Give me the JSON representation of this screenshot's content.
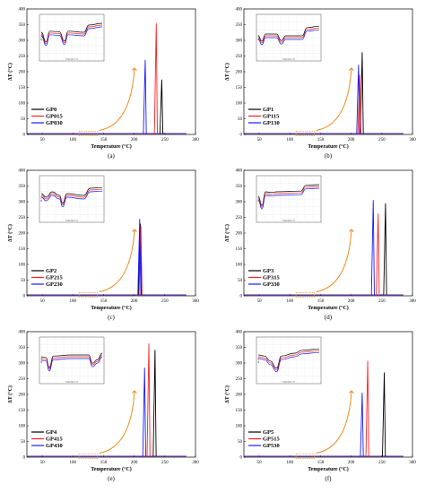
{
  "chart_data": [
    {
      "type": "line",
      "panel_label": "(a)",
      "xlabel": "Temperature (°C)",
      "ylabel": "ΔT (°C)",
      "xlim": [
        25,
        300
      ],
      "ylim": [
        0,
        400
      ],
      "xticks": [
        "50",
        "100",
        "150",
        "200",
        "250",
        "300"
      ],
      "yticks": [
        "0",
        "50",
        "100",
        "150",
        "200",
        "250",
        "300",
        "350",
        "400"
      ],
      "legend": "bottom-left",
      "series": [
        {
          "name": "GP0",
          "color": "#000000",
          "peak_x": 245,
          "peak_y": 175
        },
        {
          "name": "GP015",
          "color": "#ff2020",
          "peak_x": 236,
          "peak_y": 355
        },
        {
          "name": "GP030",
          "color": "#1a1aff",
          "peak_x": 218,
          "peak_y": 238
        }
      ],
      "inset": {
        "xlabel": "Temperature (°C)",
        "ylabel": "ΔT (°C)"
      }
    },
    {
      "type": "line",
      "panel_label": "(b)",
      "xlabel": "Temperature (°C)",
      "ylabel": "ΔT (°C)",
      "xlim": [
        25,
        300
      ],
      "ylim": [
        0,
        400
      ],
      "xticks": [
        "50",
        "100",
        "150",
        "200",
        "250",
        "300"
      ],
      "yticks": [
        "0",
        "50",
        "100",
        "150",
        "200",
        "250",
        "300",
        "350",
        "400"
      ],
      "legend": "bottom-left",
      "series": [
        {
          "name": "GP1",
          "color": "#000000",
          "peak_x": 218,
          "peak_y": 262
        },
        {
          "name": "GP115",
          "color": "#ff2020",
          "peak_x": 214,
          "peak_y": 190
        },
        {
          "name": "GP130",
          "color": "#1a1aff",
          "peak_x": 212,
          "peak_y": 222
        }
      ],
      "inset": {
        "xlabel": "Temperature (°C)",
        "ylabel": "ΔT (°C)"
      }
    },
    {
      "type": "line",
      "panel_label": "(c)",
      "xlabel": "Temperature (°C)",
      "ylabel": "ΔT (°C)",
      "xlim": [
        25,
        300
      ],
      "ylim": [
        0,
        400
      ],
      "xticks": [
        "50",
        "100",
        "150",
        "200",
        "250",
        "300"
      ],
      "yticks": [
        "0",
        "50",
        "100",
        "150",
        "200",
        "250",
        "300",
        "350",
        "400"
      ],
      "legend": "bottom-left",
      "series": [
        {
          "name": "GP2",
          "color": "#000000",
          "peak_x": 210,
          "peak_y": 230
        },
        {
          "name": "GP215",
          "color": "#ff2020",
          "peak_x": 211,
          "peak_y": 222
        },
        {
          "name": "GP230",
          "color": "#1a1aff",
          "peak_x": 209,
          "peak_y": 245
        }
      ],
      "inset": {
        "xlabel": "Temperature (°C)",
        "ylabel": "ΔT (°C)"
      }
    },
    {
      "type": "line",
      "panel_label": "(d)",
      "xlabel": "Temperature (°C)",
      "ylabel": "ΔT (°C)",
      "xlim": [
        25,
        300
      ],
      "ylim": [
        0,
        400
      ],
      "xticks": [
        "50",
        "100",
        "150",
        "200",
        "250",
        "300"
      ],
      "yticks": [
        "0",
        "50",
        "100",
        "150",
        "200",
        "250",
        "300",
        "350",
        "400"
      ],
      "legend": "bottom-left",
      "series": [
        {
          "name": "GP3",
          "color": "#000000",
          "peak_x": 256,
          "peak_y": 295
        },
        {
          "name": "GP315",
          "color": "#ff2020",
          "peak_x": 244,
          "peak_y": 262
        },
        {
          "name": "GP330",
          "color": "#1a1aff",
          "peak_x": 236,
          "peak_y": 305
        }
      ],
      "inset": {
        "xlabel": "Temperature (°C)",
        "ylabel": "ΔT (°C)"
      }
    },
    {
      "type": "line",
      "panel_label": "(e)",
      "xlabel": "Temperature (°C)",
      "ylabel": "ΔT (°C)",
      "xlim": [
        25,
        300
      ],
      "ylim": [
        0,
        400
      ],
      "xticks": [
        "50",
        "100",
        "150",
        "200",
        "250",
        "300"
      ],
      "yticks": [
        "0",
        "50",
        "100",
        "150",
        "200",
        "250",
        "300",
        "350",
        "400"
      ],
      "legend": "bottom-left",
      "series": [
        {
          "name": "GP4",
          "color": "#000000",
          "peak_x": 234,
          "peak_y": 342
        },
        {
          "name": "GP415",
          "color": "#ff2020",
          "peak_x": 224,
          "peak_y": 362
        },
        {
          "name": "GP430",
          "color": "#1a1aff",
          "peak_x": 217,
          "peak_y": 285
        }
      ],
      "inset": {
        "xlabel": "Temperature (°C)",
        "ylabel": "ΔT (°C)"
      }
    },
    {
      "type": "line",
      "panel_label": "(f)",
      "xlabel": "Temperature (°C)",
      "ylabel": "ΔT (°C)",
      "xlim": [
        25,
        300
      ],
      "ylim": [
        0,
        400
      ],
      "xticks": [
        "50",
        "100",
        "150",
        "200",
        "250",
        "300"
      ],
      "yticks": [
        "0",
        "50",
        "100",
        "150",
        "200",
        "250",
        "300",
        "350",
        "400"
      ],
      "legend": "bottom-left",
      "series": [
        {
          "name": "GP5",
          "color": "#000000",
          "peak_x": 254,
          "peak_y": 270
        },
        {
          "name": "GP515",
          "color": "#ff2020",
          "peak_x": 227,
          "peak_y": 307
        },
        {
          "name": "GP530",
          "color": "#1a1aff",
          "peak_x": 218,
          "peak_y": 205
        }
      ],
      "inset": {
        "xlabel": "Temperature (°C)",
        "ylabel": "ΔT (°C)"
      }
    }
  ]
}
